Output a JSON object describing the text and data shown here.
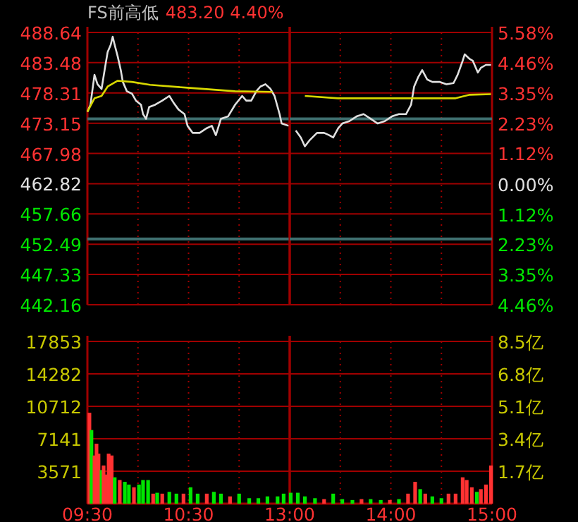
{
  "chart_data": [
    {
      "type": "line",
      "title": "FS前高低",
      "subtitle": "483.20 4.40%",
      "xlim": [
        9.5,
        11.5
      ],
      "xticks": [
        {
          "value": 9.5,
          "label": null
        },
        {
          "value": 10,
          "label": null
        },
        {
          "value": 10.5,
          "label": null
        },
        {
          "value": 11,
          "label": null
        },
        {
          "value": 11.5,
          "label": null
        }
      ],
      "ylim": [
        442.16,
        488.64
      ],
      "yticks": [
        442.16,
        447.33,
        452.49,
        457.66,
        462.82,
        467.98,
        473.15,
        478.31,
        483.48,
        488.64
      ],
      "grid": true,
      "tick_labels": "y",
      "ref_lines": [
        {
          "axis": "y",
          "value": 473.9,
          "color": "#3f6f6f"
        },
        {
          "axis": "y",
          "value": 453.4,
          "color": "#3f6f6f"
        }
      ],
      "series": [
        {
          "color": "#e0e0e0",
          "x": [
            9.5,
            9.53,
            9.57,
            9.6,
            9.64,
            9.67,
            9.7,
            9.73,
            9.75,
            9.77,
            9.8,
            9.83,
            9.85,
            9.89,
            9.94,
            9.98,
            10.03,
            10.05,
            10.08,
            10.11,
            10.17,
            10.24,
            10.31,
            10.35,
            10.4,
            10.46,
            10.49,
            10.54,
            10.61,
            10.68,
            10.73,
            10.77,
            10.82,
            10.89,
            10.96,
            11.03,
            11.07,
            11.12,
            11.17,
            11.21,
            11.26,
            11.31,
            11.35,
            11.4,
            11.42,
            11.49
          ],
          "values": [
            475.1,
            476.3,
            481.4,
            479.8,
            479.0,
            482.2,
            485.3,
            486.5,
            487.9,
            486.5,
            484.5,
            482.2,
            480.2,
            478.6,
            478.2,
            477.0,
            476.3,
            474.7,
            473.9,
            475.9,
            476.3,
            477.0,
            477.8,
            476.7,
            475.5,
            474.7,
            472.7,
            471.5,
            471.5,
            472.3,
            472.7,
            471.1,
            473.9,
            474.3,
            476.3,
            477.8,
            477.0,
            477.0,
            478.6,
            479.4,
            479.8,
            479.0,
            477.8,
            474.7,
            473.1,
            472.7
          ]
        },
        {
          "color": "#d8d800",
          "x": [
            9.5,
            9.57,
            9.64,
            9.7,
            9.8,
            9.94,
            10.12,
            10.49,
            10.96,
            11.33
          ],
          "values": [
            475.1,
            477.4,
            477.8,
            479.4,
            480.4,
            480.2,
            479.7,
            479.2,
            478.6,
            478.5
          ]
        }
      ]
    },
    {
      "type": "line",
      "xlim": [
        13,
        15
      ],
      "xticks": [
        {
          "value": 13,
          "label": null
        },
        {
          "value": 13.5,
          "label": null
        },
        {
          "value": 14,
          "label": null
        },
        {
          "value": 14.5,
          "label": null
        },
        {
          "value": 15,
          "label": null
        }
      ],
      "ylim": [
        442.16,
        488.64
      ],
      "yticks": [
        442.16,
        447.33,
        452.49,
        457.66,
        462.82,
        467.98,
        473.15,
        478.31,
        483.48,
        488.64
      ],
      "y2lim": [
        -4.46,
        5.58
      ],
      "y2ticks": [
        {
          "value": -4.46,
          "label": "4.46%"
        },
        {
          "value": -3.35,
          "label": "3.35%"
        },
        {
          "value": -2.23,
          "label": "2.23%"
        },
        {
          "value": -1.12,
          "label": "1.12%"
        },
        {
          "value": 0,
          "label": "0.00%"
        },
        {
          "value": 1.12,
          "label": "1.12%"
        },
        {
          "value": 2.23,
          "label": "2.23%"
        },
        {
          "value": 3.35,
          "label": "3.35%"
        },
        {
          "value": 4.46,
          "label": "4.46%"
        },
        {
          "value": 5.58,
          "label": "5.58%"
        }
      ],
      "grid": true,
      "tick_labels": false,
      "ref_lines": [
        {
          "axis": "y",
          "value": 473.9,
          "color": "#3f6f6f"
        },
        {
          "axis": "y",
          "value": 453.4,
          "color": "#3f6f6f"
        }
      ],
      "series": [
        {
          "color": "#e0e0e0",
          "x": [
            13.06,
            13.11,
            13.15,
            13.2,
            13.27,
            13.34,
            13.39,
            13.43,
            13.48,
            13.52,
            13.59,
            13.66,
            13.73,
            13.8,
            13.87,
            13.94,
            14.01,
            14.08,
            14.15,
            14.2,
            14.23,
            14.27,
            14.31,
            14.36,
            14.41,
            14.48,
            14.55,
            14.62,
            14.66,
            14.71,
            14.73,
            14.78,
            14.81,
            14.86,
            14.89,
            14.94,
            14.99
          ],
          "values": [
            471.9,
            470.7,
            469.2,
            470.3,
            471.5,
            471.5,
            471.1,
            470.7,
            472.3,
            473.1,
            473.5,
            474.3,
            474.7,
            473.9,
            473.1,
            473.5,
            474.3,
            474.7,
            474.7,
            476.3,
            479.4,
            481.0,
            482.2,
            480.6,
            480.2,
            480.2,
            479.8,
            480.0,
            481.4,
            483.8,
            484.9,
            484.1,
            483.8,
            481.8,
            482.6,
            483.1,
            483.1
          ]
        },
        {
          "color": "#d8d800",
          "x": [
            13.15,
            13.48,
            13.85,
            14.31,
            14.64,
            14.78,
            14.99
          ],
          "values": [
            477.8,
            477.4,
            477.4,
            477.4,
            477.4,
            478.0,
            478.1
          ]
        }
      ]
    },
    {
      "type": "bar",
      "xlim": [
        9.5,
        11.5
      ],
      "xticks": [
        {
          "value": 9.5,
          "label": "09:30"
        },
        {
          "value": 10,
          "label": null
        },
        {
          "value": 10.5,
          "label": "10:30"
        },
        {
          "value": 11,
          "label": null
        },
        {
          "value": 11.5,
          "label": null
        }
      ],
      "ylim": [
        0,
        17853
      ],
      "yticks": [
        3571,
        7141,
        10712,
        14282,
        17853
      ],
      "grid": true,
      "x": [
        9.52,
        9.54,
        9.57,
        9.59,
        9.61,
        9.64,
        9.66,
        9.68,
        9.71,
        9.74,
        9.77,
        9.82,
        9.87,
        9.91,
        9.96,
        10.01,
        10.05,
        10.1,
        10.15,
        10.19,
        10.24,
        10.31,
        10.38,
        10.45,
        10.52,
        10.59,
        10.68,
        10.75,
        10.82,
        10.91,
        11,
        11.1,
        11.19,
        11.28,
        11.38,
        11.44
      ],
      "values": [
        10000,
        8100,
        5300,
        6600,
        5500,
        3700,
        4200,
        3200,
        5500,
        5300,
        2900,
        2600,
        2400,
        2100,
        1800,
        2100,
        2600,
        2600,
        1100,
        1200,
        1100,
        1300,
        1100,
        1100,
        1800,
        1100,
        1100,
        1300,
        1100,
        800,
        1100,
        600,
        600,
        800,
        800,
        1100
      ],
      "colors": [
        "#ff3232",
        "#00e600",
        "#ff3232",
        "#ff3232",
        "#ff3232",
        "#00e600",
        "#ff3232",
        "#ff3232",
        "#ff3232",
        "#ff3232",
        "#00e600",
        "#ff3232",
        "#00e600",
        "#00e600",
        "#ff3232",
        "#00e600",
        "#00e600",
        "#00e600",
        "#ff3232",
        "#00e600",
        "#ff3232",
        "#00e600",
        "#00e600",
        "#ff3232",
        "#00e600",
        "#00e600",
        "#ff3232",
        "#00e600",
        "#00e600",
        "#ff3232",
        "#00e600",
        "#00e600",
        "#00e600",
        "#00e600",
        "#00e600",
        "#00e600"
      ]
    },
    {
      "type": "bar",
      "xlim": [
        13,
        15
      ],
      "xticks": [
        {
          "value": 13,
          "label": "13:00"
        },
        {
          "value": 13.5,
          "label": null
        },
        {
          "value": 14,
          "label": "14:00"
        },
        {
          "value": 14.5,
          "label": null
        },
        {
          "value": 15,
          "label": "15:00"
        }
      ],
      "ylim": [
        0,
        17853
      ],
      "yticks": [
        3571,
        7141,
        10712,
        14282,
        17853
      ],
      "y2lim": [
        0,
        8.5
      ],
      "y2ticks": [
        {
          "value": 1.7,
          "label": "1.7亿"
        },
        {
          "value": 3.4,
          "label": "3.4亿"
        },
        {
          "value": 5.1,
          "label": "5.1亿"
        },
        {
          "value": 6.8,
          "label": "6.8亿"
        },
        {
          "value": 8.5,
          "label": "8.5亿"
        }
      ],
      "grid": true,
      "tick_labels": "x",
      "x": [
        13.01,
        13.08,
        13.15,
        13.25,
        13.34,
        13.43,
        13.52,
        13.62,
        13.71,
        13.8,
        13.9,
        13.99,
        14.08,
        14.17,
        14.24,
        14.29,
        14.34,
        14.41,
        14.5,
        14.57,
        14.64,
        14.71,
        14.75,
        14.8,
        14.85,
        14.89,
        14.94,
        14.99
      ],
      "values": [
        1200,
        1200,
        800,
        600,
        500,
        1100,
        500,
        400,
        500,
        500,
        400,
        400,
        500,
        1100,
        2400,
        1600,
        1100,
        800,
        600,
        1100,
        1100,
        2900,
        2600,
        1800,
        1300,
        1600,
        2100,
        4200
      ],
      "colors": [
        "#00e600",
        "#00e600",
        "#00e600",
        "#00e600",
        "#ff3232",
        "#00e600",
        "#00e600",
        "#00e600",
        "#ff3232",
        "#00e600",
        "#00e600",
        "#ff3232",
        "#00e600",
        "#ff3232",
        "#ff3232",
        "#00e600",
        "#ff3232",
        "#00e600",
        "#00e600",
        "#ff3232",
        "#ff3232",
        "#ff3232",
        "#ff3232",
        "#ff3232",
        "#00e600",
        "#ff3232",
        "#ff3232",
        "#ff3232"
      ]
    }
  ]
}
